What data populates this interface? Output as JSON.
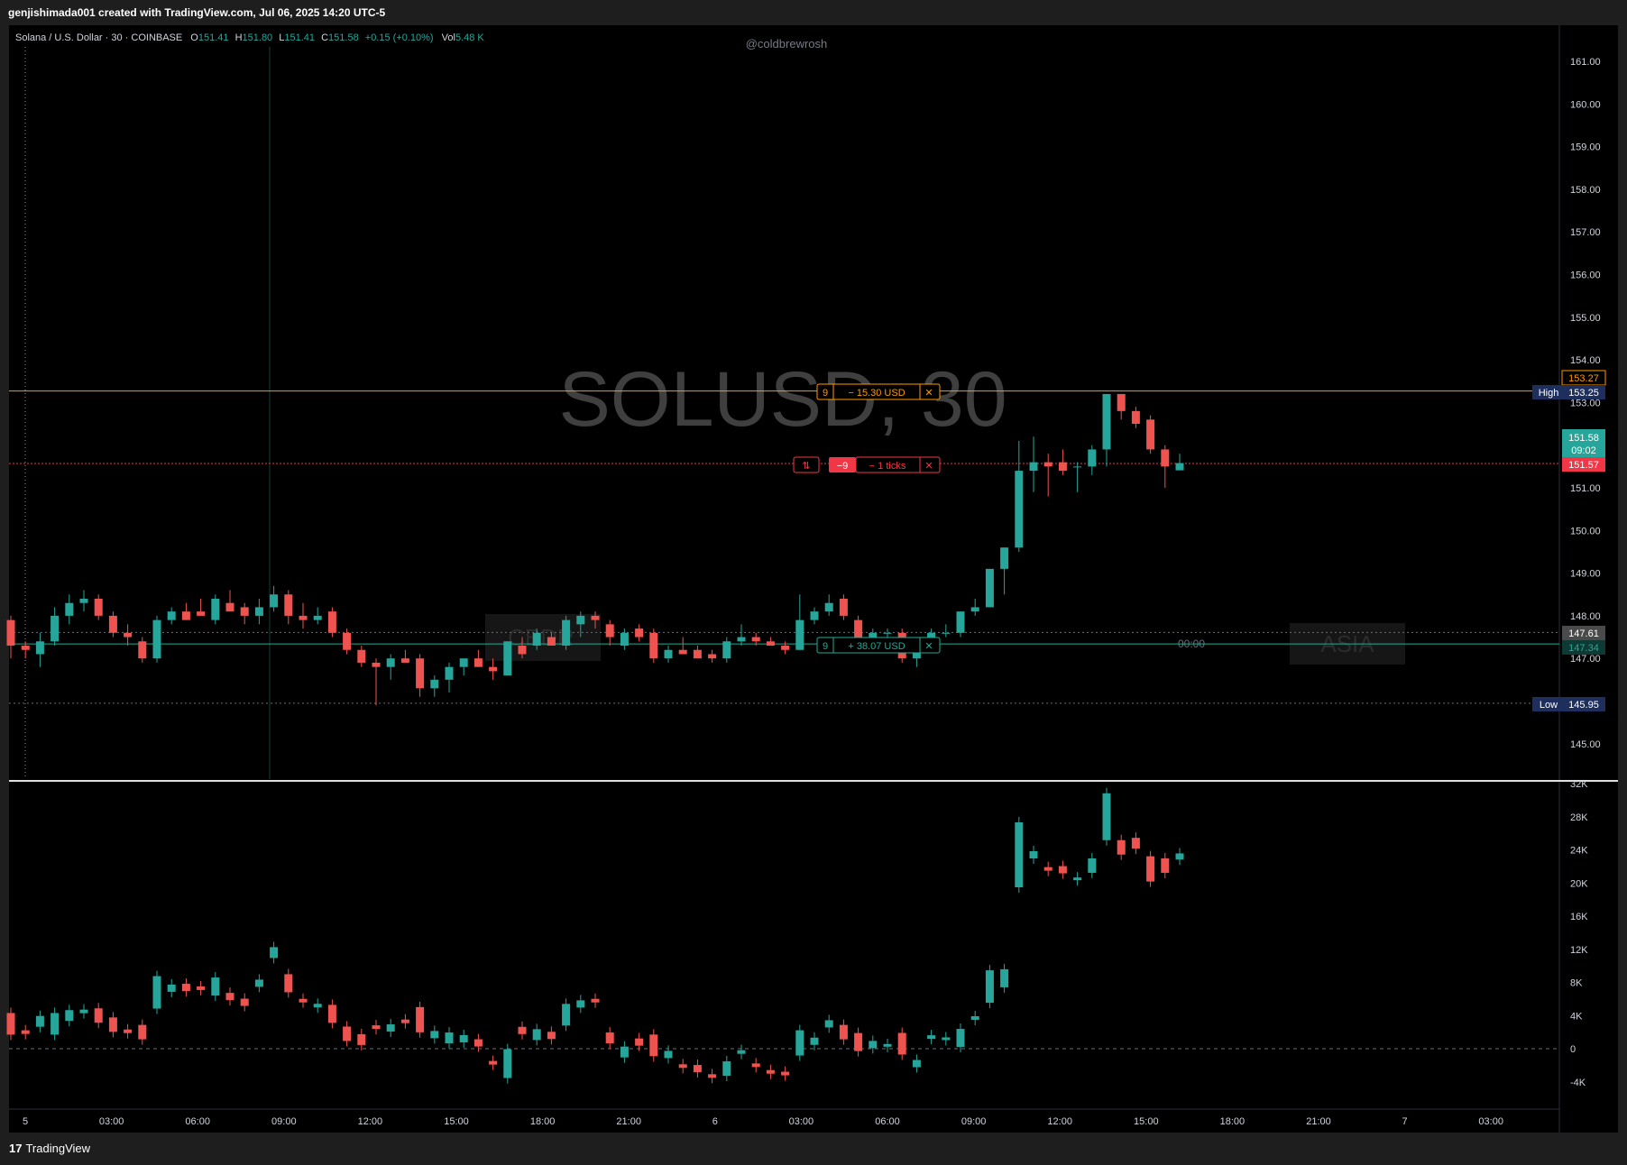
{
  "header": {
    "created_by": "genjishimada001 created with TradingView.com, Jul 06, 2025 14:20 UTC-5"
  },
  "legend": {
    "symbol": "Solana / U.S. Dollar · 30 · COINBASE",
    "o_label": "O",
    "o_val": "151.41",
    "h_label": "H",
    "h_val": "151.80",
    "l_label": "L",
    "l_val": "151.41",
    "c_label": "C",
    "c_val": "151.58",
    "change": "+0.15 (+0.10%)",
    "vol_label": "Vol",
    "vol_val": "5.48 K"
  },
  "watermark_user": "@coldbrewrosh",
  "watermark_symbol": "SOLUSD, 30",
  "sessions": {
    "cbdr": "CBDR",
    "asia": "ASIA",
    "midnight": "00:00"
  },
  "markers": {
    "orange": {
      "count": "9",
      "text": "− 15.30 USD",
      "close": "✕"
    },
    "red": {
      "icon": "⇅",
      "count": "−9",
      "text": "− 1 ticks",
      "close": "✕"
    },
    "green": {
      "count": "9",
      "text": "+ 38.07 USD",
      "close": "✕"
    }
  },
  "price_labels": {
    "orange": "153.27",
    "high_tag": "High",
    "high": "153.25",
    "last": "151.58",
    "countdown": "09:02",
    "red": "151.57",
    "gray": "147.61",
    "green": "147.34",
    "low_tag": "Low",
    "low": "145.95"
  },
  "footer": {
    "logo_mark": "17",
    "logo_text": "TradingView"
  },
  "colors": {
    "up": "#26a69a",
    "down": "#ef5350",
    "orange": "#ff9800",
    "red_line": "#f23645",
    "green_line": "#22ab94",
    "bg": "#000000",
    "frame": "#1e1e1e",
    "axis_text": "#d1d4dc",
    "high_low_bg": "#1e2f5e"
  },
  "chart_data": {
    "type": "candlestick",
    "title": "SOLUSD, 30",
    "price_axis": {
      "ylim": [
        144.3,
        161.6
      ],
      "ticks": [
        145,
        146,
        147,
        148,
        149,
        150,
        151,
        152,
        153,
        154,
        155,
        156,
        157,
        158,
        159,
        160,
        161
      ]
    },
    "volume_axis": {
      "ylim": [
        -7000,
        32000
      ],
      "ticks": [
        "-4K",
        "0",
        "4K",
        "8K",
        "12K",
        "16K",
        "20K",
        "24K",
        "28K",
        "32K"
      ]
    },
    "x_ticks": [
      "5",
      "03:00",
      "06:00",
      "09:00",
      "12:00",
      "15:00",
      "18:00",
      "21:00",
      "6",
      "03:00",
      "06:00",
      "09:00",
      "12:00",
      "15:00",
      "18:00",
      "21:00",
      "7",
      "03:00"
    ],
    "horizontal_lines": [
      {
        "price": 153.27,
        "color": "orange"
      },
      {
        "price": 151.57,
        "color": "red"
      },
      {
        "price": 147.34,
        "color": "green"
      },
      {
        "price": 147.61,
        "color": "gray"
      },
      {
        "price": 145.95,
        "color": "gray"
      }
    ],
    "candles": [
      {
        "o": 147.9,
        "h": 148.0,
        "l": 147.0,
        "c": 147.3,
        "v": 3000
      },
      {
        "o": 147.3,
        "h": 147.4,
        "l": 147.0,
        "c": 147.2,
        "v": 2000
      },
      {
        "o": 147.1,
        "h": 147.6,
        "l": 146.8,
        "c": 147.4,
        "v": 3300
      },
      {
        "o": 147.4,
        "h": 148.2,
        "l": 147.3,
        "c": 148.0,
        "v": 3000
      },
      {
        "o": 148.0,
        "h": 148.5,
        "l": 147.8,
        "c": 148.3,
        "v": 4000
      },
      {
        "o": 148.3,
        "h": 148.6,
        "l": 148.1,
        "c": 148.4,
        "v": 4500
      },
      {
        "o": 148.4,
        "h": 148.5,
        "l": 147.9,
        "c": 148.0,
        "v": 4000
      },
      {
        "o": 148.0,
        "h": 148.1,
        "l": 147.5,
        "c": 147.6,
        "v": 2900
      },
      {
        "o": 147.6,
        "h": 147.8,
        "l": 147.3,
        "c": 147.5,
        "v": 2100
      },
      {
        "o": 147.4,
        "h": 147.5,
        "l": 146.9,
        "c": 147.0,
        "v": 2000
      },
      {
        "o": 147.0,
        "h": 148.0,
        "l": 146.9,
        "c": 147.9,
        "v": 6800
      },
      {
        "o": 147.9,
        "h": 148.2,
        "l": 147.8,
        "c": 148.1,
        "v": 7300
      },
      {
        "o": 148.1,
        "h": 148.3,
        "l": 147.9,
        "c": 147.9,
        "v": 7400
      },
      {
        "o": 148.1,
        "h": 148.4,
        "l": 148.0,
        "c": 148.0,
        "v": 7300
      },
      {
        "o": 147.9,
        "h": 148.5,
        "l": 147.8,
        "c": 148.4,
        "v": 7500
      },
      {
        "o": 148.3,
        "h": 148.6,
        "l": 148.1,
        "c": 148.1,
        "v": 6300
      },
      {
        "o": 148.2,
        "h": 148.3,
        "l": 147.8,
        "c": 148.0,
        "v": 5600
      },
      {
        "o": 148.0,
        "h": 148.4,
        "l": 147.8,
        "c": 148.2,
        "v": 7900
      },
      {
        "o": 148.2,
        "h": 148.7,
        "l": 148.1,
        "c": 148.5,
        "v": 11600
      },
      {
        "o": 148.5,
        "h": 148.6,
        "l": 147.8,
        "c": 148.0,
        "v": 7900
      },
      {
        "o": 148.0,
        "h": 148.3,
        "l": 147.7,
        "c": 147.9,
        "v": 5800
      },
      {
        "o": 147.9,
        "h": 148.2,
        "l": 147.8,
        "c": 148.0,
        "v": 5200
      },
      {
        "o": 148.1,
        "h": 148.2,
        "l": 147.5,
        "c": 147.6,
        "v": 4200
      },
      {
        "o": 147.6,
        "h": 147.7,
        "l": 147.1,
        "c": 147.2,
        "v": 1800
      },
      {
        "o": 147.2,
        "h": 147.3,
        "l": 146.8,
        "c": 146.9,
        "v": 1100
      },
      {
        "o": 146.9,
        "h": 147.0,
        "l": 145.9,
        "c": 146.8,
        "v": 2600
      },
      {
        "o": 146.8,
        "h": 147.1,
        "l": 146.5,
        "c": 147.0,
        "v": 2500
      },
      {
        "o": 147.0,
        "h": 147.2,
        "l": 146.9,
        "c": 146.9,
        "v": 3300
      },
      {
        "o": 147.0,
        "h": 147.1,
        "l": 146.1,
        "c": 146.3,
        "v": 3500
      },
      {
        "o": 146.3,
        "h": 146.6,
        "l": 146.1,
        "c": 146.5,
        "v": 1700
      },
      {
        "o": 146.5,
        "h": 146.9,
        "l": 146.2,
        "c": 146.8,
        "v": 1300
      },
      {
        "o": 146.8,
        "h": 147.0,
        "l": 146.6,
        "c": 147.0,
        "v": 1200
      },
      {
        "o": 147.0,
        "h": 147.2,
        "l": 146.8,
        "c": 146.8,
        "v": 700
      },
      {
        "o": 146.8,
        "h": 147.0,
        "l": 146.5,
        "c": 146.7,
        "v": -1700
      },
      {
        "o": 146.6,
        "h": 147.4,
        "l": 146.6,
        "c": 147.4,
        "v": -1800
      },
      {
        "o": 147.3,
        "h": 147.5,
        "l": 147.0,
        "c": 147.1,
        "v": 2200
      },
      {
        "o": 147.3,
        "h": 147.7,
        "l": 147.2,
        "c": 147.6,
        "v": 1700
      },
      {
        "o": 147.5,
        "h": 147.6,
        "l": 147.3,
        "c": 147.3,
        "v": 1600
      },
      {
        "o": 147.3,
        "h": 148.0,
        "l": 147.2,
        "c": 147.9,
        "v": 4100
      },
      {
        "o": 147.8,
        "h": 148.1,
        "l": 147.5,
        "c": 148.0,
        "v": 5400
      },
      {
        "o": 148.0,
        "h": 148.1,
        "l": 147.7,
        "c": 147.9,
        "v": 5800
      },
      {
        "o": 147.8,
        "h": 147.9,
        "l": 147.3,
        "c": 147.5,
        "v": 1300
      },
      {
        "o": 147.3,
        "h": 147.7,
        "l": 147.2,
        "c": 147.6,
        "v": -400
      },
      {
        "o": 147.7,
        "h": 147.8,
        "l": 147.4,
        "c": 147.5,
        "v": 800
      },
      {
        "o": 147.6,
        "h": 147.7,
        "l": 146.9,
        "c": 147.0,
        "v": 400
      },
      {
        "o": 147.0,
        "h": 147.3,
        "l": 146.9,
        "c": 147.2,
        "v": -700
      },
      {
        "o": 147.2,
        "h": 147.5,
        "l": 147.1,
        "c": 147.1,
        "v": -2100
      },
      {
        "o": 147.2,
        "h": 147.3,
        "l": 147.0,
        "c": 147.0,
        "v": -2400
      },
      {
        "o": 147.1,
        "h": 147.2,
        "l": 146.9,
        "c": 147.0,
        "v": -3300
      },
      {
        "o": 147.0,
        "h": 147.5,
        "l": 146.9,
        "c": 147.4,
        "v": -2400
      },
      {
        "o": 147.4,
        "h": 147.8,
        "l": 147.3,
        "c": 147.5,
        "v": -400
      },
      {
        "o": 147.5,
        "h": 147.6,
        "l": 147.3,
        "c": 147.4,
        "v": -2000
      },
      {
        "o": 147.4,
        "h": 147.5,
        "l": 147.3,
        "c": 147.3,
        "v": -2800
      },
      {
        "o": 147.3,
        "h": 147.4,
        "l": 147.1,
        "c": 147.2,
        "v": -3000
      },
      {
        "o": 147.2,
        "h": 148.5,
        "l": 147.2,
        "c": 147.9,
        "v": 700
      },
      {
        "o": 147.9,
        "h": 148.2,
        "l": 147.8,
        "c": 148.1,
        "v": 900
      },
      {
        "o": 148.1,
        "h": 148.5,
        "l": 148.0,
        "c": 148.3,
        "v": 3000
      },
      {
        "o": 148.4,
        "h": 148.5,
        "l": 147.9,
        "c": 148.0,
        "v": 2000
      },
      {
        "o": 147.9,
        "h": 148.0,
        "l": 147.3,
        "c": 147.4,
        "v": 800
      },
      {
        "o": 147.4,
        "h": 147.7,
        "l": 147.3,
        "c": 147.6,
        "v": 500
      },
      {
        "o": 147.6,
        "h": 147.7,
        "l": 147.4,
        "c": 147.6,
        "v": 400
      },
      {
        "o": 147.6,
        "h": 147.7,
        "l": 146.9,
        "c": 147.0,
        "v": 600
      },
      {
        "o": 147.0,
        "h": 147.3,
        "l": 146.8,
        "c": 147.2,
        "v": -1800
      },
      {
        "o": 147.5,
        "h": 147.7,
        "l": 147.4,
        "c": 147.6,
        "v": 1400
      },
      {
        "o": 147.6,
        "h": 147.8,
        "l": 147.5,
        "c": 147.6,
        "v": 1200
      },
      {
        "o": 147.6,
        "h": 148.1,
        "l": 147.5,
        "c": 148.1,
        "v": 1300
      },
      {
        "o": 148.1,
        "h": 148.4,
        "l": 148.0,
        "c": 148.2,
        "v": 3700
      },
      {
        "o": 148.2,
        "h": 149.1,
        "l": 148.2,
        "c": 149.1,
        "v": 7500
      },
      {
        "o": 149.1,
        "h": 149.6,
        "l": 148.5,
        "c": 149.6,
        "v": 8500
      },
      {
        "o": 149.6,
        "h": 152.1,
        "l": 149.5,
        "c": 151.4,
        "v": 23400
      },
      {
        "o": 151.4,
        "h": 152.2,
        "l": 150.9,
        "c": 151.6,
        "v": 23400
      },
      {
        "o": 151.6,
        "h": 151.8,
        "l": 150.8,
        "c": 151.5,
        "v": 21700
      },
      {
        "o": 151.6,
        "h": 151.9,
        "l": 151.3,
        "c": 151.4,
        "v": 21600
      },
      {
        "o": 151.5,
        "h": 151.6,
        "l": 150.9,
        "c": 151.5,
        "v": 20500
      },
      {
        "o": 151.5,
        "h": 152.0,
        "l": 151.3,
        "c": 151.9,
        "v": 22100
      },
      {
        "o": 151.9,
        "h": 153.2,
        "l": 151.5,
        "c": 153.2,
        "v": 28000
      },
      {
        "o": 153.2,
        "h": 153.2,
        "l": 152.6,
        "c": 152.8,
        "v": 24300
      },
      {
        "o": 152.8,
        "h": 152.9,
        "l": 152.4,
        "c": 152.5,
        "v": 24800
      },
      {
        "o": 152.6,
        "h": 152.7,
        "l": 151.8,
        "c": 151.9,
        "v": 21700
      },
      {
        "o": 151.9,
        "h": 152.0,
        "l": 151.0,
        "c": 151.5,
        "v": 22100
      },
      {
        "o": 151.41,
        "h": 151.8,
        "l": 151.41,
        "c": 151.58,
        "v": 23200
      }
    ]
  }
}
